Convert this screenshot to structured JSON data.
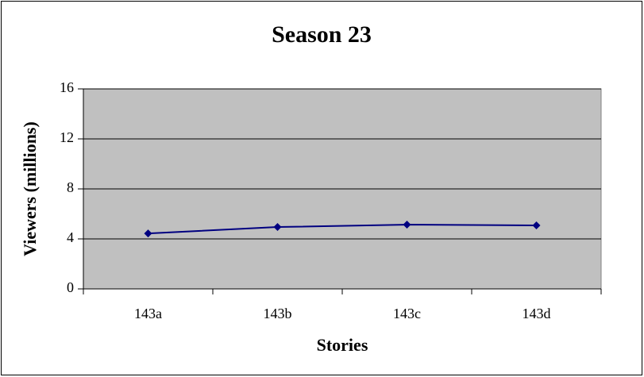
{
  "chart_data": {
    "type": "line",
    "title": "Season 23",
    "x_label": "Stories",
    "y_label": "Viewers (millions)",
    "categories": [
      "143a",
      "143b",
      "143c",
      "143d"
    ],
    "values": [
      4.44,
      4.95,
      5.14,
      5.08
    ],
    "color": "#000080",
    "ylim": [
      0,
      16
    ],
    "yticks": [
      0,
      4,
      8,
      12,
      16
    ],
    "grid": true
  }
}
